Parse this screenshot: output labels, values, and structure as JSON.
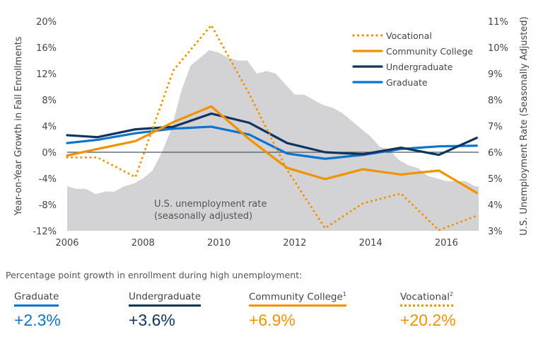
{
  "chart_data": {
    "type": "line",
    "ylabel": "Year-on-Year Growth in Fall Enrollments",
    "y2label": "U.S. Unemployment Rate (Seasonally Adjusted)",
    "xlim": [
      2006,
      2016.85
    ],
    "ylim": [
      -12,
      20
    ],
    "y2lim": [
      3,
      11
    ],
    "xticks": [
      "2006",
      "2008",
      "2010",
      "2012",
      "2014",
      "2016"
    ],
    "yticks": [
      "20%",
      "16%",
      "12%",
      "8%",
      "4%",
      "0%",
      "-4%",
      "-8%",
      "-12%"
    ],
    "y2ticks": [
      "11%",
      "10%",
      "9%",
      "8%",
      "7%",
      "6%",
      "5%",
      "4%",
      "3%"
    ],
    "legend_position": "top-right",
    "x": [
      2006,
      2006.8,
      2007.8,
      2008.8,
      2009.8,
      2010.8,
      2011.8,
      2012.8,
      2013.8,
      2014.8,
      2015.8,
      2016.8
    ],
    "series": [
      {
        "name": "Vocational",
        "color": "#f39200",
        "style": "dotted",
        "values": [
          -0.8,
          -0.8,
          -3.8,
          12.5,
          19.4,
          8.9,
          -2.7,
          -11.6,
          -7.8,
          -6.3,
          -11.9,
          -9.7
        ]
      },
      {
        "name": "Community College",
        "color": "#f39200",
        "style": "solid",
        "values": [
          -0.5,
          0.5,
          1.7,
          4.6,
          7.0,
          2.0,
          -2.4,
          -4.1,
          -2.6,
          -3.4,
          -2.8,
          -6.2
        ]
      },
      {
        "name": "Undergraduate",
        "color": "#0f3460",
        "style": "solid",
        "values": [
          2.6,
          2.3,
          3.5,
          3.9,
          5.9,
          4.5,
          1.4,
          0.0,
          -0.3,
          0.7,
          -0.4,
          2.2
        ]
      },
      {
        "name": "Graduate",
        "color": "#0a74d0",
        "style": "solid",
        "values": [
          1.4,
          1.9,
          2.9,
          3.6,
          3.9,
          2.7,
          -0.2,
          -1.0,
          -0.4,
          0.5,
          0.9,
          1.0
        ]
      }
    ],
    "area": {
      "label_line1": "U.S. unemployment rate",
      "label_line2": "(seasonally adjusted)",
      "color": "#d3d3d5",
      "axis": "right",
      "x": [
        2006,
        2006.25,
        2006.5,
        2006.75,
        2007,
        2007.25,
        2007.5,
        2007.75,
        2008,
        2008.25,
        2008.5,
        2008.75,
        2009,
        2009.25,
        2009.5,
        2009.75,
        2010,
        2010.25,
        2010.5,
        2010.75,
        2011,
        2011.25,
        2011.5,
        2011.75,
        2012,
        2012.25,
        2012.5,
        2012.75,
        2013,
        2013.25,
        2013.5,
        2013.75,
        2014,
        2014.25,
        2014.5,
        2014.75,
        2015,
        2015.25,
        2015.5,
        2015.75,
        2016,
        2016.25,
        2016.5,
        2016.75,
        2016.85
      ],
      "values": [
        4.7,
        4.6,
        4.6,
        4.4,
        4.5,
        4.5,
        4.7,
        4.8,
        5.0,
        5.3,
        6.0,
        6.9,
        8.3,
        9.3,
        9.6,
        9.9,
        9.8,
        9.6,
        9.5,
        9.5,
        9.0,
        9.1,
        9.0,
        8.6,
        8.2,
        8.2,
        8.0,
        7.8,
        7.7,
        7.5,
        7.2,
        6.9,
        6.6,
        6.2,
        6.1,
        5.7,
        5.5,
        5.4,
        5.1,
        5.0,
        4.9,
        4.9,
        4.9,
        4.7,
        4.7
      ]
    }
  },
  "summary": {
    "heading": "Percentage point growth in enrollment during high unemployment:",
    "items": [
      {
        "label": "Graduate",
        "sup": "",
        "value": "+2.3%",
        "color": "#0a74d0",
        "line": "solid"
      },
      {
        "label": "Undergraduate",
        "sup": "",
        "value": "+3.6%",
        "color": "#0f3460",
        "line": "solid"
      },
      {
        "label": "Community College",
        "sup": "1",
        "value": "+6.9%",
        "color": "#f39200",
        "line": "solid"
      },
      {
        "label": "Vocational",
        "sup": "2",
        "value": "+20.2%",
        "color": "#f39200",
        "line": "dotted"
      }
    ]
  }
}
